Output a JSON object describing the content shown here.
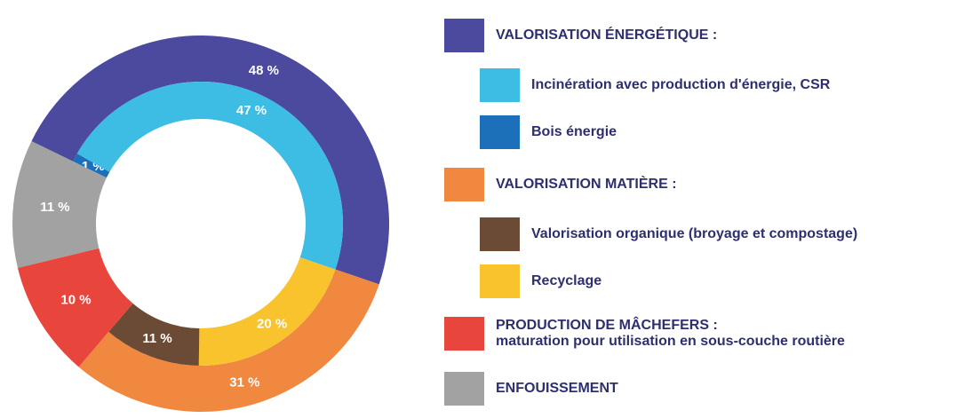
{
  "chart_data": {
    "type": "donut",
    "series": [
      {
        "name": "VALORISATION ÉNERGÉTIQUE :",
        "color": "#4b4a9e",
        "value": 48,
        "value_label": "48 %",
        "children": [
          {
            "name": "Bois énergie",
            "color": "#1c70b9",
            "value": 1,
            "value_label": "1 %"
          },
          {
            "name": "Incinération avec production d'énergie, CSR",
            "color": "#3dbde4",
            "value": 47,
            "value_label": "47 %"
          }
        ]
      },
      {
        "name": "VALORISATION MATIÈRE :",
        "color": "#f0883f",
        "value": 31,
        "value_label": "31 %",
        "children": [
          {
            "name": "Recyclage",
            "color": "#f9c32d",
            "value": 20,
            "value_label": "20 %"
          },
          {
            "name": "Valorisation organique (broyage et compostage)",
            "color": "#6b4b35",
            "value": 11,
            "value_label": "11 %"
          }
        ]
      },
      {
        "name": "PRODUCTION DE MÂCHEFERS :",
        "description": "maturation pour utilisation en sous-couche routière",
        "color": "#e8463d",
        "value": 10,
        "value_label": "10 %"
      },
      {
        "name": "ENFOUISSEMENT",
        "color": "#a2a2a2",
        "value": 11,
        "value_label": "11 %"
      }
    ]
  }
}
